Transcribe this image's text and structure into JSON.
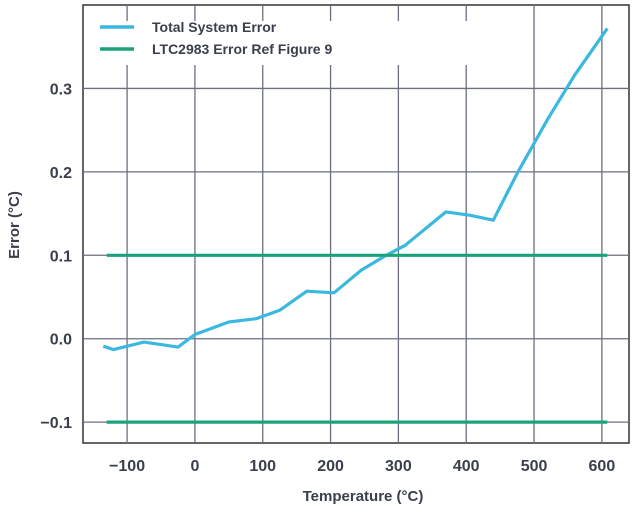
{
  "chart_data": {
    "type": "line",
    "title": "",
    "xlabel": "Temperature (°C)",
    "ylabel": "Error (°C)",
    "xlim": [
      -165,
      640
    ],
    "ylim": [
      -0.125,
      0.4
    ],
    "xticks": [
      -100,
      0,
      100,
      200,
      300,
      400,
      500,
      600
    ],
    "xtick_labels": [
      "−100",
      "0",
      "100",
      "200",
      "300",
      "400",
      "500",
      "600"
    ],
    "yticks": [
      -0.1,
      0.0,
      0.1,
      0.2,
      0.3
    ],
    "ytick_labels": [
      "−0.1",
      "0.0",
      "0.1",
      "0.2",
      "0.3"
    ],
    "grid": true,
    "legend_position": "top-left",
    "series": [
      {
        "name": "Total System Error",
        "color": "#3ab8e0",
        "x": [
          -135,
          -120,
          -75,
          -25,
          0,
          50,
          90,
          125,
          165,
          205,
          245,
          280,
          310,
          370,
          405,
          440,
          475,
          520,
          560,
          608
        ],
        "y": [
          -0.009,
          -0.013,
          -0.004,
          -0.01,
          0.005,
          0.02,
          0.024,
          0.034,
          0.057,
          0.055,
          0.082,
          0.099,
          0.112,
          0.152,
          0.148,
          0.142,
          0.198,
          0.263,
          0.316,
          0.372
        ]
      },
      {
        "name": "LTC2983 Error Ref Figure 9",
        "color": "#1aa37a",
        "x": [
          -130,
          608
        ],
        "y": [
          0.1,
          0.1
        ]
      },
      {
        "name": "",
        "color": "#1aa37a",
        "x": [
          -130,
          608
        ],
        "y": [
          -0.1,
          -0.1
        ]
      }
    ]
  }
}
